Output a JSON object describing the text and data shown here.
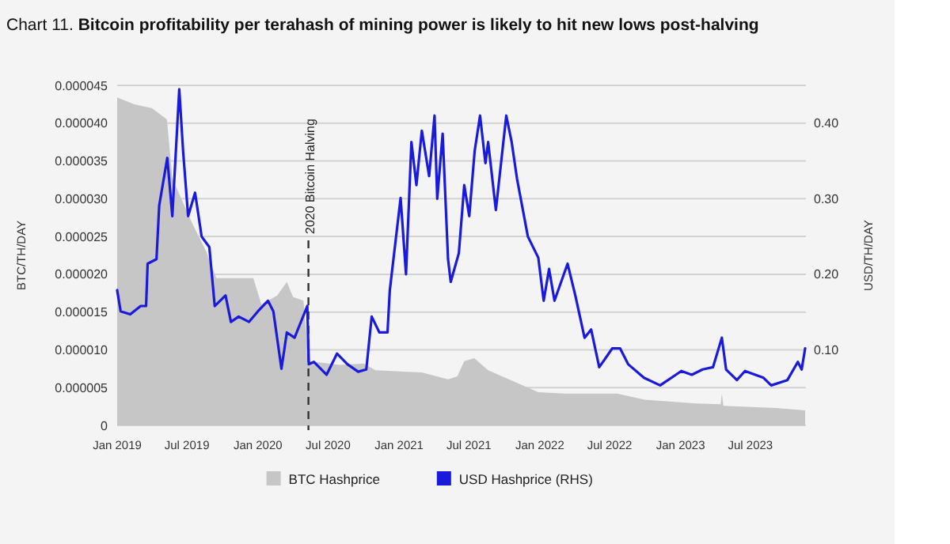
{
  "chart_data": {
    "type": "area",
    "title": "Chart 11. Bitcoin profitability per terahash of mining power is likely to hit new lows post-halving",
    "ylabel": "BTC/TH/DAY",
    "y2label": "USD/TH/DAY",
    "xlim": [
      "2019-01-01",
      "2023-11-22"
    ],
    "xticks": [
      {
        "value": "2019-01-01",
        "label": "Jan 2019"
      },
      {
        "value": "2019-07-01",
        "label": "Jul 2019"
      },
      {
        "value": "2020-01-01",
        "label": "Jan 2020"
      },
      {
        "value": "2020-07-01",
        "label": "Jul 2020"
      },
      {
        "value": "2021-01-01",
        "label": "Jan 2021"
      },
      {
        "value": "2021-07-01",
        "label": "Jul 2021"
      },
      {
        "value": "2022-01-01",
        "label": "Jan 2022"
      },
      {
        "value": "2022-07-01",
        "label": "Jul 2022"
      },
      {
        "value": "2023-01-01",
        "label": "Jan 2023"
      },
      {
        "value": "2023-07-01",
        "label": "Jul 2023"
      }
    ],
    "ylim": [
      0,
      4.5e-05
    ],
    "yticks": [
      0,
      {
        "value": 5e-06,
        "label": "0.000005"
      },
      {
        "value": 1e-05,
        "label": "0.000010"
      },
      {
        "value": 1.5e-05,
        "label": "0.000015"
      },
      {
        "value": 2e-05,
        "label": "0.000020"
      },
      {
        "value": 2.5e-05,
        "label": "0.000025"
      },
      {
        "value": 3e-05,
        "label": "0.000030"
      },
      {
        "value": 3.5e-05,
        "label": "0.000035"
      },
      {
        "value": 4e-05,
        "label": "0.000040"
      },
      {
        "value": 4.5e-05,
        "label": "0.000045"
      }
    ],
    "y2lim": [
      0,
      0.45
    ],
    "y2ticks": [
      {
        "value": 0.1,
        "label": "0.10"
      },
      {
        "value": 0.2,
        "label": "0.20"
      },
      {
        "value": 0.3,
        "label": "0.30"
      },
      {
        "value": 0.4,
        "label": "0.40"
      }
    ],
    "grid": "y",
    "legend": "bottom",
    "ref_lines": [
      {
        "axis": "x",
        "value": "2020-05-11",
        "label": "2020 Bitcoin Halving",
        "color": "#333333",
        "line_style": "dashed"
      }
    ],
    "series": [
      {
        "name": "BTC Hashprice",
        "color": "#c6c6c6",
        "x": [
          "2019-01-01",
          "2019-02-15",
          "2019-04-01",
          "2019-05-10",
          "2019-05-24",
          "2019-07-15",
          "2019-08-20",
          "2019-09-15",
          "2019-12-20",
          "2020-01-10",
          "2020-02-20",
          "2020-03-16",
          "2020-04-01",
          "2020-04-28",
          "2020-05-12",
          "2020-08-01",
          "2020-10-01",
          "2020-11-01",
          "2021-03-01",
          "2021-05-08",
          "2021-06-01",
          "2021-06-19",
          "2021-07-15",
          "2021-08-20",
          "2021-12-28",
          "2022-03-05",
          "2022-07-20",
          "2022-09-30",
          "2023-02-10",
          "2023-04-15",
          "2023-04-18",
          "2023-04-22",
          "2023-09-05",
          "2023-11-20"
        ],
        "values": [
          4.34e-05,
          4.25e-05,
          4.2e-05,
          4.05e-05,
          3.27e-05,
          2.67e-05,
          2.3e-05,
          1.95e-05,
          1.95e-05,
          1.6e-05,
          1.72e-05,
          1.9e-05,
          1.7e-05,
          1.65e-05,
          8.5e-06,
          8e-06,
          8.2e-06,
          7.3e-06,
          7e-06,
          6.1e-06,
          6.5e-06,
          8.5e-06,
          8.9e-06,
          7.3e-06,
          4.4e-06,
          4.2e-06,
          4.2e-06,
          3.4e-06,
          2.9e-06,
          2.8e-06,
          4.2e-06,
          2.6e-06,
          2.3e-06,
          2e-06
        ]
      },
      {
        "name": "USD Hashprice (RHS)",
        "type": "line",
        "axis": "y2",
        "color": "#1a1adb",
        "x": [
          "2019-01-01",
          "2019-01-10",
          "2019-02-04",
          "2019-03-03",
          "2019-03-17",
          "2019-03-21",
          "2019-04-13",
          "2019-04-20",
          "2019-05-11",
          "2019-05-24",
          "2019-06-11",
          "2019-06-21",
          "2019-07-04",
          "2019-07-22",
          "2019-08-08",
          "2019-08-28",
          "2019-09-11",
          "2019-10-09",
          "2019-10-23",
          "2019-11-12",
          "2019-12-09",
          "2020-01-01",
          "2020-01-27",
          "2020-02-10",
          "2020-03-02",
          "2020-03-16",
          "2020-04-05",
          "2020-05-08",
          "2020-05-12",
          "2020-05-25",
          "2020-06-27",
          "2020-07-24",
          "2020-08-20",
          "2020-09-17",
          "2020-10-08",
          "2020-10-22",
          "2020-11-11",
          "2020-12-02",
          "2020-12-08",
          "2021-01-05",
          "2021-01-19",
          "2021-02-02",
          "2021-02-15",
          "2021-03-01",
          "2021-03-20",
          "2021-04-03",
          "2021-04-10",
          "2021-04-24",
          "2021-05-08",
          "2021-05-15",
          "2021-06-05",
          "2021-06-19",
          "2021-07-02",
          "2021-07-16",
          "2021-07-30",
          "2021-08-13",
          "2021-08-20",
          "2021-09-09",
          "2021-10-06",
          "2021-10-20",
          "2021-11-03",
          "2021-12-01",
          "2021-12-28",
          "2022-01-11",
          "2022-01-25",
          "2022-02-08",
          "2022-03-14",
          "2022-04-03",
          "2022-04-27",
          "2022-05-14",
          "2022-06-04",
          "2022-07-08",
          "2022-07-28",
          "2022-08-18",
          "2022-09-28",
          "2022-11-09",
          "2023-01-03",
          "2023-01-30",
          "2023-02-27",
          "2023-03-26",
          "2023-04-18",
          "2023-04-29",
          "2023-05-27",
          "2023-06-17",
          "2023-08-04",
          "2023-08-24",
          "2023-10-05",
          "2023-11-01",
          "2023-11-11",
          "2023-11-20"
        ],
        "values": [
          0.179,
          0.151,
          0.147,
          0.158,
          0.158,
          0.214,
          0.22,
          0.291,
          0.354,
          0.277,
          0.445,
          0.363,
          0.277,
          0.308,
          0.25,
          0.236,
          0.158,
          0.172,
          0.137,
          0.144,
          0.137,
          0.151,
          0.165,
          0.151,
          0.075,
          0.123,
          0.116,
          0.158,
          0.081,
          0.084,
          0.067,
          0.095,
          0.081,
          0.071,
          0.074,
          0.144,
          0.123,
          0.123,
          0.179,
          0.301,
          0.2,
          0.375,
          0.318,
          0.39,
          0.33,
          0.41,
          0.3,
          0.386,
          0.22,
          0.19,
          0.228,
          0.318,
          0.277,
          0.363,
          0.41,
          0.347,
          0.375,
          0.285,
          0.41,
          0.375,
          0.326,
          0.25,
          0.222,
          0.165,
          0.207,
          0.165,
          0.214,
          0.172,
          0.116,
          0.127,
          0.077,
          0.102,
          0.102,
          0.081,
          0.063,
          0.053,
          0.072,
          0.067,
          0.074,
          0.077,
          0.116,
          0.074,
          0.06,
          0.072,
          0.063,
          0.053,
          0.06,
          0.084,
          0.074,
          0.102
        ]
      }
    ]
  }
}
